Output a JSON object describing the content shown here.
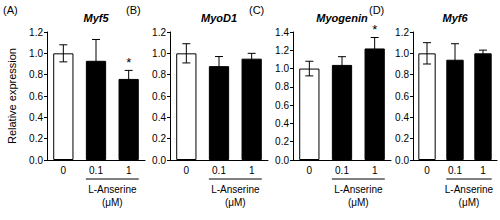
{
  "chart_data": [
    {
      "type": "bar",
      "panel": "(A)",
      "title": "Myf5",
      "ylabel": "Relative expression",
      "xlabel": "L-Anserine\n(μM)",
      "categories": [
        "0",
        "0.1",
        "1"
      ],
      "values": [
        1.0,
        0.93,
        0.76
      ],
      "errors": [
        0.08,
        0.2,
        0.08
      ],
      "colors": [
        "#ffffff",
        "#000000",
        "#000000"
      ],
      "ylim": [
        0,
        1.2
      ],
      "yticks": [
        {
          "value": 0,
          "label": "0.0"
        },
        0.2,
        0.4,
        0.6,
        0.8,
        {
          "value": 1,
          "label": "1.0"
        },
        1.2
      ],
      "grid": false,
      "annotations": [
        {
          "category": "1",
          "text": "*"
        }
      ]
    },
    {
      "type": "bar",
      "panel": "(B)",
      "title": "MyoD1",
      "xlabel": "L-Anserine\n(μM)",
      "categories": [
        "0",
        "0.1",
        "1"
      ],
      "values": [
        1.0,
        0.88,
        0.95
      ],
      "errors": [
        0.09,
        0.09,
        0.05
      ],
      "colors": [
        "#ffffff",
        "#000000",
        "#000000"
      ],
      "ylim": [
        0,
        1.2
      ],
      "yticks": [
        {
          "value": 0,
          "label": "0.0"
        },
        0.2,
        0.4,
        0.6,
        0.8,
        {
          "value": 1,
          "label": "1.0"
        },
        1.2
      ],
      "grid": false
    },
    {
      "type": "bar",
      "panel": "(C)",
      "title": "Myogenin",
      "xlabel": "L-Anserine\n(μM)",
      "categories": [
        "0",
        "0.1",
        "1"
      ],
      "values": [
        1.0,
        1.04,
        1.22
      ],
      "errors": [
        0.08,
        0.09,
        0.12
      ],
      "colors": [
        "#ffffff",
        "#000000",
        "#000000"
      ],
      "ylim": [
        0,
        1.4
      ],
      "yticks": [
        {
          "value": 0,
          "label": "0.0"
        },
        0.2,
        0.4,
        0.6,
        0.8,
        {
          "value": 1,
          "label": "1.0"
        },
        1.2,
        1.4
      ],
      "grid": false,
      "annotations": [
        {
          "category": "1",
          "text": "*"
        }
      ]
    },
    {
      "type": "bar",
      "panel": "(D)",
      "title": "Myf6",
      "xlabel": "L-Anserine\n(μM)",
      "categories": [
        "0",
        "0.1",
        "1"
      ],
      "values": [
        1.0,
        0.94,
        1.0
      ],
      "errors": [
        0.1,
        0.15,
        0.03
      ],
      "colors": [
        "#ffffff",
        "#000000",
        "#000000"
      ],
      "ylim": [
        0,
        1.2
      ],
      "yticks": [
        {
          "value": 0,
          "label": "0.0"
        },
        0.2,
        0.4,
        0.6,
        0.8,
        {
          "value": 1,
          "label": "1.0"
        },
        1.2
      ],
      "grid": false
    }
  ]
}
